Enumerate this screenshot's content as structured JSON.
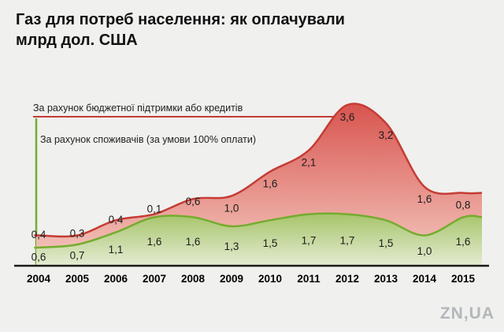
{
  "title": {
    "line1": "Газ для потреб населення: як оплачували",
    "line2": "млрд дол. США"
  },
  "legend": {
    "budget": "За рахунок бюджетної підтримки або кредитів",
    "consumers": "За рахунок споживачів (за умови 100% оплати)"
  },
  "watermark": "ZN,UA",
  "colors": {
    "background": "#f0f0ee",
    "red_stroke": "#c43c35",
    "red_fill_top": "#d7504b",
    "red_fill_bottom": "#f5cdc3",
    "green_stroke": "#75ac2f",
    "green_fill_top": "#97ba50",
    "green_fill_bottom": "#e7eed8",
    "axis": "#1a1a1a"
  },
  "chart_data": {
    "type": "area",
    "stacked": true,
    "title": "Газ для потреб населення: як оплачували, млрд дол. США",
    "categories": [
      "2004",
      "2005",
      "2006",
      "2007",
      "2008",
      "2009",
      "2010",
      "2011",
      "2012",
      "2013",
      "2014",
      "2015"
    ],
    "series": [
      {
        "name": "За рахунок споживачів (за умови 100% оплати)",
        "color": "#75ac2f",
        "values": [
          0.6,
          0.7,
          1.1,
          1.6,
          1.6,
          1.3,
          1.5,
          1.7,
          1.7,
          1.5,
          1.0,
          1.6
        ],
        "labels": [
          "0,6",
          "0,7",
          "1,1",
          "1,6",
          "1,6",
          "1,3",
          "1,5",
          "1,7",
          "1,7",
          "1,5",
          "1,0",
          "1,6"
        ]
      },
      {
        "name": "За рахунок бюджетної підтримки або кредитів",
        "color": "#c43c35",
        "values": [
          0.4,
          0.3,
          0.4,
          0.1,
          0.6,
          1.0,
          1.6,
          2.1,
          3.6,
          3.2,
          1.6,
          0.8
        ],
        "labels": [
          "0,4",
          "0,3",
          "0,4",
          "0,1",
          "0,6",
          "1,0",
          "1,6",
          "2,1",
          "3,6",
          "3,2",
          "1,6",
          "0,8"
        ]
      }
    ],
    "xlabel": "",
    "ylabel": "млрд дол. США",
    "ylim": [
      0,
      5.5
    ],
    "grid": false,
    "legend_position": "top-left"
  }
}
